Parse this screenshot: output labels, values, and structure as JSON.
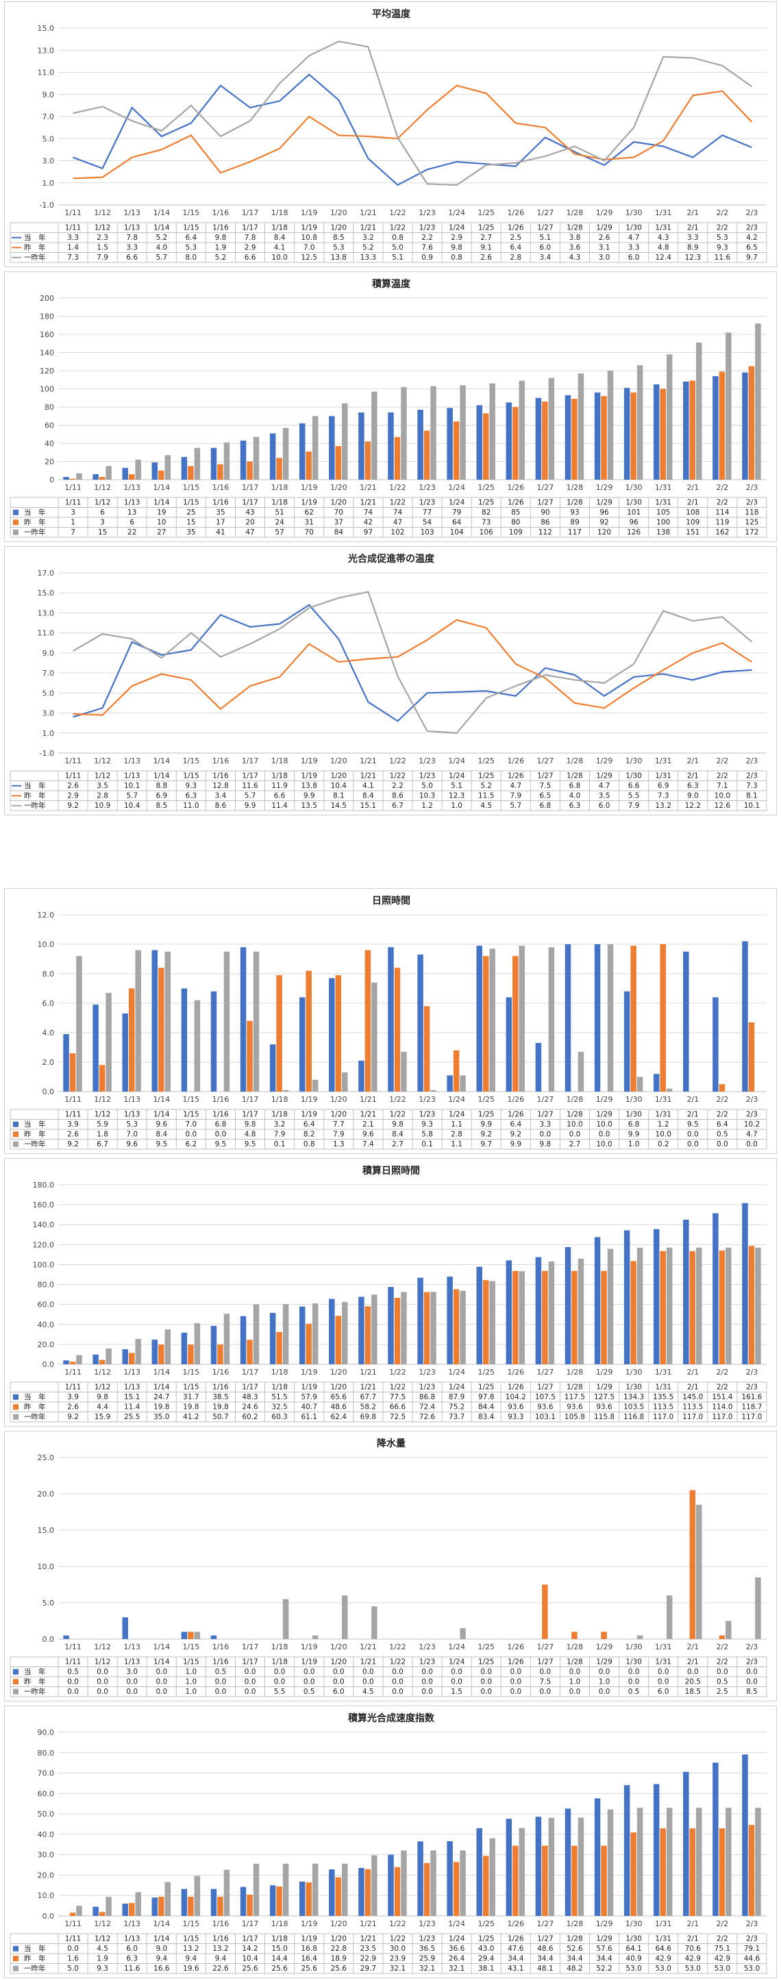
{
  "colors": {
    "current": "#4472C4",
    "previous": "#ED7D31",
    "two_years_ago": "#A5A5A5"
  },
  "charts": [
    {
      "type": "line",
      "title": "平均温度",
      "ylim": [
        -1,
        15
      ],
      "ystep": 2,
      "decimals": 1,
      "categories": [
        "1/11",
        "1/12",
        "1/13",
        "1/14",
        "1/15",
        "1/16",
        "1/17",
        "1/18",
        "1/19",
        "1/20",
        "1/21",
        "1/22",
        "1/23",
        "1/24",
        "1/25",
        "1/26",
        "1/27",
        "1/28",
        "1/29",
        "1/30",
        "1/31",
        "2/1",
        "2/2",
        "2/3"
      ],
      "series": [
        {
          "name": "当　年",
          "values": [
            3.3,
            2.3,
            7.8,
            5.2,
            6.4,
            9.8,
            7.8,
            8.4,
            10.8,
            8.5,
            3.2,
            0.8,
            2.2,
            2.9,
            2.7,
            2.5,
            5.1,
            3.8,
            2.6,
            4.7,
            4.3,
            3.3,
            5.3,
            4.2
          ]
        },
        {
          "name": "昨　年",
          "values": [
            1.4,
            1.5,
            3.3,
            4.0,
            5.3,
            1.9,
            2.9,
            4.1,
            7.0,
            5.3,
            5.2,
            5.0,
            7.6,
            9.8,
            9.1,
            6.4,
            6.0,
            3.6,
            3.1,
            3.3,
            4.8,
            8.9,
            9.3,
            6.5
          ]
        },
        {
          "name": "一昨年",
          "values": [
            7.3,
            7.9,
            6.6,
            5.7,
            8.0,
            5.2,
            6.6,
            10.0,
            12.5,
            13.8,
            13.3,
            5.1,
            0.9,
            0.8,
            2.6,
            2.8,
            3.4,
            4.3,
            3.0,
            6.0,
            12.4,
            12.3,
            11.6,
            9.7
          ]
        }
      ]
    },
    {
      "type": "bar",
      "title": "積算温度",
      "ylim": [
        0,
        200
      ],
      "ystep": 20,
      "decimals": 0,
      "categories": [
        "1/11",
        "1/12",
        "1/13",
        "1/14",
        "1/15",
        "1/16",
        "1/17",
        "1/18",
        "1/19",
        "1/20",
        "1/21",
        "1/22",
        "1/23",
        "1/24",
        "1/25",
        "1/26",
        "1/27",
        "1/28",
        "1/29",
        "1/30",
        "1/31",
        "2/1",
        "2/2",
        "2/3"
      ],
      "series": [
        {
          "name": "当　年",
          "values": [
            3,
            6,
            13,
            19,
            25,
            35,
            43,
            51,
            62,
            70,
            74,
            74,
            77,
            79,
            82,
            85,
            90,
            93,
            96,
            101,
            105,
            108,
            114,
            118
          ]
        },
        {
          "name": "昨　年",
          "values": [
            1,
            3,
            6,
            10,
            15,
            17,
            20,
            24,
            31,
            37,
            42,
            47,
            54,
            64,
            73,
            80,
            86,
            89,
            92,
            96,
            100,
            109,
            119,
            125
          ]
        },
        {
          "name": "一昨年",
          "values": [
            7,
            15,
            22,
            27,
            35,
            41,
            47,
            57,
            70,
            84,
            97,
            102,
            103,
            104,
            106,
            109,
            112,
            117,
            120,
            126,
            138,
            151,
            162,
            172
          ]
        }
      ]
    },
    {
      "type": "line",
      "title": "光合成促進帯の温度",
      "ylim": [
        -1,
        17
      ],
      "ystep": 2,
      "decimals": 1,
      "categories": [
        "1/11",
        "1/12",
        "1/13",
        "1/14",
        "1/15",
        "1/16",
        "1/17",
        "1/18",
        "1/19",
        "1/20",
        "1/21",
        "1/22",
        "1/23",
        "1/24",
        "1/25",
        "1/26",
        "1/27",
        "1/28",
        "1/29",
        "1/30",
        "1/31",
        "2/1",
        "2/2",
        "2/3"
      ],
      "series": [
        {
          "name": "当　年",
          "values": [
            2.6,
            3.5,
            10.1,
            8.8,
            9.3,
            12.8,
            11.6,
            11.9,
            13.8,
            10.4,
            4.1,
            2.2,
            5.0,
            5.1,
            5.2,
            4.7,
            7.5,
            6.8,
            4.7,
            6.6,
            6.9,
            6.3,
            7.1,
            7.3
          ]
        },
        {
          "name": "昨　年",
          "values": [
            2.9,
            2.8,
            5.7,
            6.9,
            6.3,
            3.4,
            5.7,
            6.6,
            9.9,
            8.1,
            8.4,
            8.6,
            10.3,
            12.3,
            11.5,
            7.9,
            6.5,
            4.0,
            3.5,
            5.5,
            7.3,
            9.0,
            10.0,
            8.1
          ]
        },
        {
          "name": "一昨年",
          "values": [
            9.2,
            10.9,
            10.4,
            8.5,
            11.0,
            8.6,
            9.9,
            11.4,
            13.5,
            14.5,
            15.1,
            6.7,
            1.2,
            1.0,
            4.5,
            5.7,
            6.8,
            6.3,
            6.0,
            7.9,
            13.2,
            12.2,
            12.6,
            10.1
          ]
        }
      ]
    },
    {
      "type": "bar",
      "title": "日照時間",
      "ylim": [
        0,
        12
      ],
      "ystep": 2,
      "decimals": 1,
      "categories": [
        "1/11",
        "1/12",
        "1/13",
        "1/14",
        "1/15",
        "1/16",
        "1/17",
        "1/18",
        "1/19",
        "1/20",
        "1/21",
        "1/22",
        "1/23",
        "1/24",
        "1/25",
        "1/26",
        "1/27",
        "1/28",
        "1/29",
        "1/30",
        "1/31",
        "2/1",
        "2/2",
        "2/3"
      ],
      "series": [
        {
          "name": "当　年",
          "values": [
            3.9,
            5.9,
            5.3,
            9.6,
            7.0,
            6.8,
            9.8,
            3.2,
            6.4,
            7.7,
            2.1,
            9.8,
            9.3,
            1.1,
            9.9,
            6.4,
            3.3,
            10.0,
            10.0,
            6.8,
            1.2,
            9.5,
            6.4,
            10.2
          ]
        },
        {
          "name": "昨　年",
          "values": [
            2.6,
            1.8,
            7.0,
            8.4,
            0.0,
            0.0,
            4.8,
            7.9,
            8.2,
            7.9,
            9.6,
            8.4,
            5.8,
            2.8,
            9.2,
            9.2,
            0.0,
            0.0,
            0.0,
            9.9,
            10.0,
            0.0,
            0.5,
            4.7
          ]
        },
        {
          "name": "一昨年",
          "values": [
            9.2,
            6.7,
            9.6,
            9.5,
            6.2,
            9.5,
            9.5,
            0.1,
            0.8,
            1.3,
            7.4,
            2.7,
            0.1,
            1.1,
            9.7,
            9.9,
            9.8,
            2.7,
            10.0,
            1.0,
            0.2,
            0.0,
            0.0,
            0.0
          ]
        }
      ]
    },
    {
      "type": "bar",
      "title": "積算日照時間",
      "ylim": [
        0,
        180
      ],
      "ystep": 20,
      "decimals": 1,
      "categories": [
        "1/11",
        "1/12",
        "1/13",
        "1/14",
        "1/15",
        "1/16",
        "1/17",
        "1/18",
        "1/19",
        "1/20",
        "1/21",
        "1/22",
        "1/23",
        "1/24",
        "1/25",
        "1/26",
        "1/27",
        "1/28",
        "1/29",
        "1/30",
        "1/31",
        "2/1",
        "2/2",
        "2/3"
      ],
      "series": [
        {
          "name": "当　年",
          "values": [
            3.9,
            9.8,
            15.1,
            24.7,
            31.7,
            38.5,
            48.3,
            51.5,
            57.9,
            65.6,
            67.7,
            77.5,
            86.8,
            87.9,
            97.8,
            104.2,
            107.5,
            117.5,
            127.5,
            134.3,
            135.5,
            145.0,
            151.4,
            161.6
          ]
        },
        {
          "name": "昨　年",
          "values": [
            2.6,
            4.4,
            11.4,
            19.8,
            19.8,
            19.8,
            24.6,
            32.5,
            40.7,
            48.6,
            58.2,
            66.6,
            72.4,
            75.2,
            84.4,
            93.6,
            93.6,
            93.6,
            93.6,
            103.5,
            113.5,
            113.5,
            114.0,
            118.7
          ]
        },
        {
          "name": "一昨年",
          "values": [
            9.2,
            15.9,
            25.5,
            35.0,
            41.2,
            50.7,
            60.2,
            60.3,
            61.1,
            62.4,
            69.8,
            72.5,
            72.6,
            73.7,
            83.4,
            93.3,
            103.1,
            105.8,
            115.8,
            116.8,
            117.0,
            117.0,
            117.0,
            117.0
          ]
        }
      ]
    },
    {
      "type": "bar",
      "title": "降水量",
      "ylim": [
        0,
        25
      ],
      "ystep": 5,
      "decimals": 1,
      "categories": [
        "1/11",
        "1/12",
        "1/13",
        "1/14",
        "1/15",
        "1/16",
        "1/17",
        "1/18",
        "1/19",
        "1/20",
        "1/21",
        "1/22",
        "1/23",
        "1/24",
        "1/25",
        "1/26",
        "1/27",
        "1/28",
        "1/29",
        "1/30",
        "1/31",
        "2/1",
        "2/2",
        "2/3"
      ],
      "series": [
        {
          "name": "当　年",
          "values": [
            0.5,
            0.0,
            3.0,
            0.0,
            1.0,
            0.5,
            0.0,
            0.0,
            0.0,
            0.0,
            0.0,
            0.0,
            0.0,
            0.0,
            0.0,
            0.0,
            0.0,
            0.0,
            0.0,
            0.0,
            0.0,
            0.0,
            0.0,
            0.0
          ]
        },
        {
          "name": "昨　年",
          "values": [
            0.0,
            0.0,
            0.0,
            0.0,
            1.0,
            0.0,
            0.0,
            0.0,
            0.0,
            0.0,
            0.0,
            0.0,
            0.0,
            0.0,
            0.0,
            0.0,
            7.5,
            1.0,
            1.0,
            0.0,
            0.0,
            20.5,
            0.5,
            0.0
          ]
        },
        {
          "name": "一昨年",
          "values": [
            0.0,
            0.0,
            0.0,
            0.0,
            1.0,
            0.0,
            0.0,
            5.5,
            0.5,
            6.0,
            4.5,
            0.0,
            0.0,
            1.5,
            0.0,
            0.0,
            0.0,
            0.0,
            0.0,
            0.5,
            6.0,
            18.5,
            2.5,
            8.5
          ]
        }
      ]
    },
    {
      "type": "bar",
      "title": "積算光合成速度指数",
      "ylim": [
        0,
        90
      ],
      "ystep": 10,
      "decimals": 1,
      "categories": [
        "1/11",
        "1/12",
        "1/13",
        "1/14",
        "1/15",
        "1/16",
        "1/17",
        "1/18",
        "1/19",
        "1/20",
        "1/21",
        "1/22",
        "1/23",
        "1/24",
        "1/25",
        "1/26",
        "1/27",
        "1/28",
        "1/29",
        "1/30",
        "1/31",
        "2/1",
        "2/2",
        "2/3"
      ],
      "series": [
        {
          "name": "当　年",
          "values": [
            0.0,
            4.5,
            6.0,
            9.0,
            13.2,
            13.2,
            14.2,
            15.0,
            16.8,
            22.8,
            23.5,
            30.0,
            36.5,
            36.6,
            43.0,
            47.6,
            48.6,
            52.6,
            57.6,
            64.1,
            64.6,
            70.6,
            75.1,
            79.1
          ]
        },
        {
          "name": "昨　年",
          "values": [
            1.6,
            1.9,
            6.3,
            9.4,
            9.4,
            9.4,
            10.4,
            14.4,
            16.4,
            18.9,
            22.9,
            23.9,
            25.9,
            26.4,
            29.4,
            34.4,
            34.4,
            34.4,
            34.4,
            40.9,
            42.9,
            42.9,
            42.9,
            44.6
          ]
        },
        {
          "name": "一昨年",
          "values": [
            5.0,
            9.3,
            11.6,
            16.6,
            19.6,
            22.6,
            25.6,
            25.6,
            25.6,
            25.6,
            29.7,
            32.1,
            32.1,
            32.1,
            38.1,
            43.1,
            48.1,
            48.2,
            52.2,
            53.0,
            53.0,
            53.0,
            53.0,
            53.0
          ]
        }
      ]
    }
  ]
}
